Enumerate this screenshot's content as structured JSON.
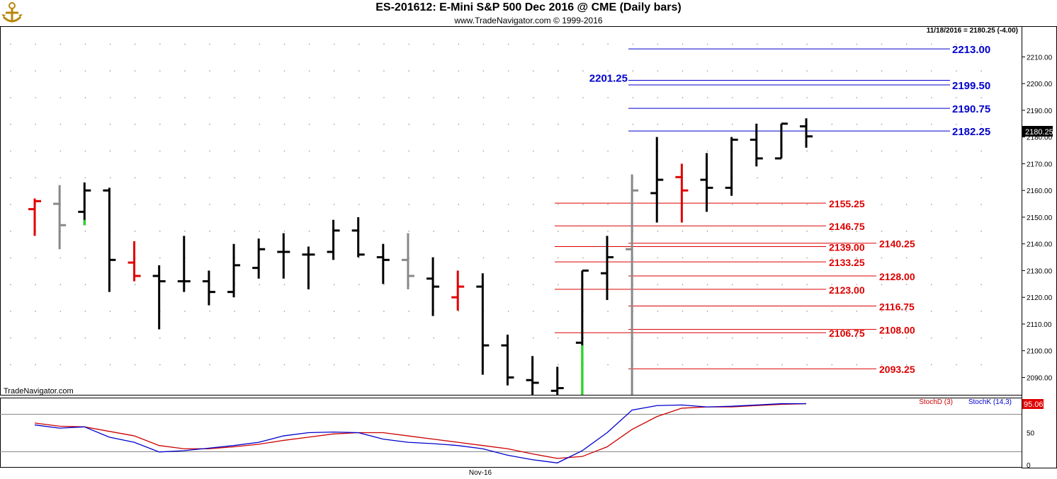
{
  "header": {
    "title": "ES-201612:  E-Mini S&P 500 Dec 2016 @ CME  (Daily bars)",
    "subtitle": "www.TradeNavigator.com © 1999-2016",
    "last_info": "11/18/2016 = 2180.25 (-4.00)",
    "watermark": "TradeNavigator.com",
    "logo_icon": "ship-wheel-icon"
  },
  "price_panel": {
    "ylim": [
      2083.5,
      2221.5
    ],
    "yticks": [
      2090,
      2100,
      2110,
      2120,
      2130,
      2140,
      2150,
      2160,
      2170,
      2180,
      2190,
      2200,
      2210
    ],
    "ytick_labels": [
      "2090.00",
      "2100.00",
      "2110.00",
      "2120.00",
      "2130.00",
      "2140.00",
      "2150.00",
      "2160.00",
      "2170.00",
      "2180.00",
      "2190.00",
      "2200.00",
      "2210.00"
    ],
    "last_price_label": "2180.25",
    "last_price": 2180.25
  },
  "colors": {
    "blue_level": "#0000cc",
    "red_level": "#dd0000",
    "bar_black": "#000000",
    "bar_gray": "#888888",
    "bar_red": "#e00000",
    "bar_green": "#22dd22",
    "stoch_d": "#cc0000",
    "stoch_k": "#0000cc"
  },
  "chart_data": {
    "type": "ohlc",
    "bars": [
      {
        "o": 2153,
        "h": 2157,
        "l": 2143,
        "c": 2156,
        "color": "red"
      },
      {
        "o": 2155,
        "h": 2162,
        "l": 2138,
        "c": 2147,
        "color": "gray"
      },
      {
        "o": 2152,
        "h": 2163,
        "l": 2147,
        "c": 2160,
        "color": "black",
        "low_tail": "green"
      },
      {
        "o": 2160,
        "h": 2161,
        "l": 2122,
        "c": 2134,
        "color": "black"
      },
      {
        "o": 2133,
        "h": 2141,
        "l": 2126,
        "c": 2128,
        "color": "red"
      },
      {
        "o": 2128,
        "h": 2132,
        "l": 2108,
        "c": 2126,
        "color": "black"
      },
      {
        "o": 2126,
        "h": 2143,
        "l": 2122,
        "c": 2126,
        "color": "black"
      },
      {
        "o": 2126,
        "h": 2130,
        "l": 2117,
        "c": 2122,
        "color": "black"
      },
      {
        "o": 2122,
        "h": 2140,
        "l": 2120,
        "c": 2132,
        "color": "black"
      },
      {
        "o": 2131,
        "h": 2142,
        "l": 2127,
        "c": 2138,
        "color": "black"
      },
      {
        "o": 2137,
        "h": 2144,
        "l": 2127,
        "c": 2137,
        "color": "black"
      },
      {
        "o": 2136,
        "h": 2139,
        "l": 2123,
        "c": 2136,
        "color": "black"
      },
      {
        "o": 2137,
        "h": 2149,
        "l": 2134,
        "c": 2145,
        "color": "black"
      },
      {
        "o": 2145,
        "h": 2150,
        "l": 2135,
        "c": 2136,
        "color": "black"
      },
      {
        "o": 2135,
        "h": 2140,
        "l": 2125,
        "c": 2134,
        "color": "black"
      },
      {
        "o": 2134,
        "h": 2144,
        "l": 2123,
        "c": 2128,
        "color": "gray"
      },
      {
        "o": 2127,
        "h": 2135,
        "l": 2113,
        "c": 2124,
        "color": "black"
      },
      {
        "o": 2120,
        "h": 2130,
        "l": 2115,
        "c": 2124,
        "color": "red"
      },
      {
        "o": 2124,
        "h": 2129,
        "l": 2091,
        "c": 2102,
        "color": "black"
      },
      {
        "o": 2102,
        "h": 2106,
        "l": 2087,
        "c": 2090,
        "color": "black"
      },
      {
        "o": 2089,
        "h": 2098,
        "l": 2083.5,
        "c": 2088,
        "color": "black"
      },
      {
        "o": 2085,
        "h": 2094,
        "l": 2083.5,
        "c": 2086,
        "color": "black"
      },
      {
        "o": 2103,
        "h": 2130,
        "l": 2083.5,
        "c": 2130,
        "color": "black",
        "low_tail": "green"
      },
      {
        "o": 2129,
        "h": 2143,
        "l": 2119,
        "c": 2135,
        "color": "black"
      },
      {
        "o": 2138,
        "h": 2166,
        "l": 2083.5,
        "c": 2160,
        "color": "gray"
      },
      {
        "o": 2159,
        "h": 2180,
        "l": 2148,
        "c": 2164,
        "color": "black"
      },
      {
        "o": 2165,
        "h": 2170,
        "l": 2148,
        "c": 2160,
        "color": "red"
      },
      {
        "o": 2164,
        "h": 2174,
        "l": 2152,
        "c": 2161,
        "color": "black"
      },
      {
        "o": 2161,
        "h": 2180,
        "l": 2158,
        "c": 2179,
        "color": "black"
      },
      {
        "o": 2179,
        "h": 2185,
        "l": 2169,
        "c": 2172,
        "color": "black"
      },
      {
        "o": 2172,
        "h": 2185,
        "l": 2172,
        "c": 2185,
        "color": "black"
      },
      {
        "o": 2184,
        "h": 2187,
        "l": 2176,
        "c": 2180.25,
        "color": "black"
      }
    ],
    "blue_levels": [
      {
        "value": 2213.0,
        "label": "2213.00",
        "side": "right"
      },
      {
        "value": 2201.25,
        "label": "2201.25",
        "side": "left"
      },
      {
        "value": 2199.5,
        "label": "2199.50",
        "side": "right"
      },
      {
        "value": 2190.75,
        "label": "2190.75",
        "side": "right"
      },
      {
        "value": 2182.25,
        "label": "2182.25",
        "side": "right"
      }
    ],
    "red_levels": [
      {
        "value": 2155.25,
        "label": "2155.25",
        "end": 22,
        "label_at": "left"
      },
      {
        "value": 2146.75,
        "label": "2146.75",
        "end": 22,
        "label_at": "left"
      },
      {
        "value": 2140.25,
        "label": "2140.25",
        "end": 24,
        "label_at": "right"
      },
      {
        "value": 2139.0,
        "label": "2139.00",
        "end": 22,
        "label_at": "left"
      },
      {
        "value": 2133.25,
        "label": "2133.25",
        "end": 22,
        "label_at": "left"
      },
      {
        "value": 2128.0,
        "label": "2128.00",
        "end": 24,
        "label_at": "right"
      },
      {
        "value": 2123.0,
        "label": "2123.00",
        "end": 22,
        "label_at": "left"
      },
      {
        "value": 2116.75,
        "label": "2116.75",
        "end": 24,
        "label_at": "right"
      },
      {
        "value": 2108.0,
        "label": "2108.00",
        "end": 24,
        "label_at": "right"
      },
      {
        "value": 2106.75,
        "label": "2106.75",
        "end": 22,
        "label_at": "left"
      },
      {
        "value": 2093.25,
        "label": "2093.25",
        "end": 24,
        "label_at": "right"
      }
    ],
    "x_label": "Nov-16",
    "x_label_bar": 18,
    "stochastic": {
      "ylim": [
        0,
        100
      ],
      "yticks": [
        0,
        50
      ],
      "ytick_labels": [
        "0",
        "50"
      ],
      "level_lines": [
        20,
        80
      ],
      "last_value_label": "95.06",
      "series": [
        {
          "name": "StochD (3)",
          "color": "stoch_d",
          "values": [
            65,
            60,
            59,
            52,
            45,
            30,
            25,
            25,
            28,
            32,
            38,
            43,
            48,
            50,
            50,
            45,
            40,
            35,
            30,
            25,
            17,
            10,
            13,
            28,
            55,
            75,
            88,
            90,
            90,
            92,
            94,
            95
          ]
        },
        {
          "name": "StochK (14,3)",
          "color": "stoch_k",
          "values": [
            62,
            57,
            59,
            43,
            35,
            20,
            22,
            26,
            30,
            35,
            45,
            50,
            51,
            50,
            40,
            35,
            33,
            30,
            25,
            15,
            8,
            3,
            22,
            50,
            85,
            92,
            93,
            90,
            91,
            93,
            95,
            95.06
          ]
        }
      ]
    }
  }
}
